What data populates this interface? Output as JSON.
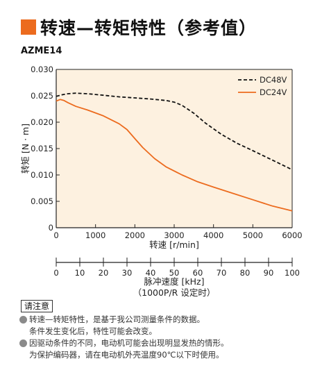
{
  "header": {
    "title": "转速—转矩特性（参考值）",
    "model": "AZME14"
  },
  "chart_data": {
    "type": "line",
    "title": "转速—转矩特性（参考值）",
    "subtitle": "AZME14",
    "xlabel": "转速 [r/min]",
    "ylabel": "转矩 [N · m]",
    "xlim": [
      0,
      6000
    ],
    "ylim": [
      0,
      0.03
    ],
    "x_ticks": [
      "0",
      "1000",
      "2000",
      "3000",
      "4000",
      "5000",
      "6000"
    ],
    "y_ticks": [
      "0",
      "0.005",
      "0.010",
      "0.015",
      "0.020",
      "0.025",
      "0.030"
    ],
    "secondary_x": {
      "label": "脉冲速度 [kHz]",
      "label2": "（1000P/R 设定时）",
      "ticks": [
        "0",
        "10",
        "20",
        "30",
        "40",
        "50",
        "60",
        "70",
        "80",
        "90",
        "100"
      ],
      "range": [
        0,
        100
      ]
    },
    "legend_position": "top-right",
    "grid": false,
    "series": [
      {
        "name": "DC48V",
        "style": "dashed",
        "color": "#111111",
        "x": [
          0,
          150,
          300,
          500,
          800,
          1200,
          1600,
          2000,
          2400,
          2800,
          3000,
          3200,
          3500,
          3800,
          4200,
          4600,
          5000,
          5500,
          6000
        ],
        "y": [
          0.0249,
          0.0252,
          0.0254,
          0.0255,
          0.0254,
          0.0251,
          0.0248,
          0.0246,
          0.0244,
          0.0241,
          0.0238,
          0.0232,
          0.0217,
          0.0198,
          0.0177,
          0.016,
          0.0146,
          0.0128,
          0.011
        ]
      },
      {
        "name": "DC24V",
        "style": "solid",
        "color": "#ec6b1e",
        "x": [
          0,
          100,
          200,
          300,
          500,
          800,
          1200,
          1600,
          1800,
          2000,
          2200,
          2500,
          2800,
          3200,
          3600,
          4000,
          4500,
          5000,
          5500,
          6000
        ],
        "y": [
          0.024,
          0.0243,
          0.0241,
          0.0237,
          0.023,
          0.0223,
          0.0212,
          0.0197,
          0.0186,
          0.0169,
          0.0152,
          0.0131,
          0.0115,
          0.01,
          0.0087,
          0.0077,
          0.0065,
          0.0053,
          0.0041,
          0.0032
        ]
      }
    ]
  },
  "notes": {
    "header": "请注意",
    "items": [
      {
        "lines": [
          "转速—转矩特性，是基于我公司测量条件的数据。",
          "条件发生变化后，特性可能会改变。"
        ]
      },
      {
        "lines": [
          "因驱动条件的不同，电动机可能会出现明显发热的情形。",
          "为保护编码器，请在电动机外壳温度90℃以下时使用。"
        ]
      }
    ]
  }
}
